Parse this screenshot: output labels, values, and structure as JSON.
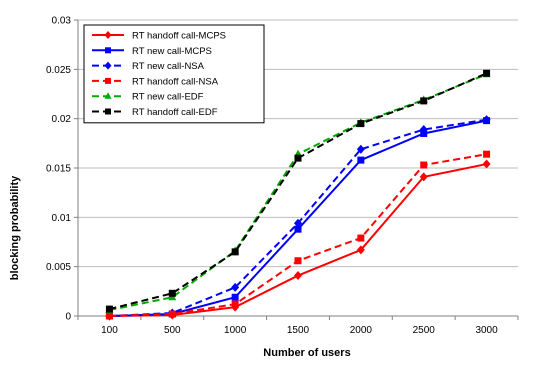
{
  "chart_data": {
    "type": "line",
    "xlabel": "Number of users",
    "ylabel": "blocking probability",
    "categories": [
      "100",
      "500",
      "1000",
      "1500",
      "2000",
      "2500",
      "3000"
    ],
    "ylim": [
      0,
      0.03
    ],
    "yticks": [
      0,
      0.005,
      0.01,
      0.015,
      0.02,
      0.025,
      0.03
    ],
    "ytick_labels": [
      "0",
      "0.005",
      "0.01",
      "0.015",
      "0.02",
      "0.025",
      "0.03"
    ],
    "grid": "horizontal",
    "legend_position": "top-left",
    "series": [
      {
        "name": "RT handoff call-MCPS",
        "color": "#ff0000",
        "dash": "solid",
        "marker": "diamond",
        "values": [
          0.0,
          0.0001,
          0.0009,
          0.0041,
          0.0067,
          0.0141,
          0.0154
        ]
      },
      {
        "name": "RT new call-MCPS",
        "color": "#0000ff",
        "dash": "solid",
        "marker": "square",
        "values": [
          0.0,
          0.0002,
          0.0019,
          0.0088,
          0.0158,
          0.0185,
          0.0198
        ]
      },
      {
        "name": "RT new call-NSA",
        "color": "#0000ff",
        "dash": "dashed",
        "marker": "diamond",
        "values": [
          0.0,
          0.0003,
          0.0029,
          0.0094,
          0.0169,
          0.0189,
          0.0199
        ]
      },
      {
        "name": "RT handoff call-NSA",
        "color": "#ff0000",
        "dash": "dashed",
        "marker": "square",
        "values": [
          0.0,
          0.0002,
          0.0012,
          0.0056,
          0.0079,
          0.0153,
          0.0164
        ]
      },
      {
        "name": "RT new call-EDF",
        "color": "#00aa00",
        "dash": "dashed",
        "marker": "triangle",
        "values": [
          0.0006,
          0.0019,
          0.0066,
          0.0164,
          0.0196,
          0.0219,
          0.0245
        ]
      },
      {
        "name": "RT handoff call-EDF",
        "color": "#000000",
        "dash": "dashed",
        "marker": "square",
        "values": [
          0.0007,
          0.0023,
          0.0065,
          0.016,
          0.0195,
          0.0218,
          0.0246
        ]
      }
    ]
  }
}
